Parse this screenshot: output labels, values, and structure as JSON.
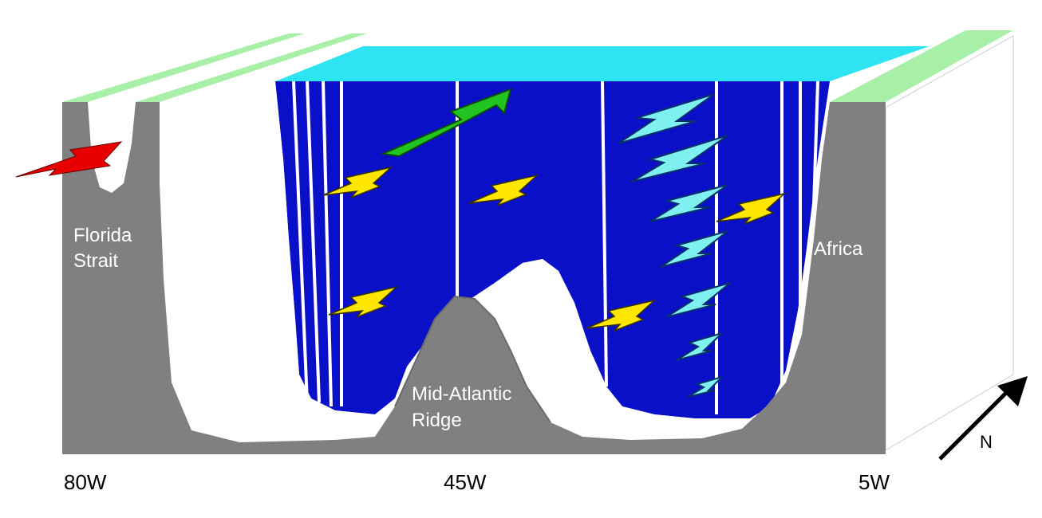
{
  "labels": {
    "florida_line1": "Florida",
    "florida_line2": "Strait",
    "africa": "Africa",
    "ridge_line1": "Mid-Atlantic",
    "ridge_line2": "Ridge",
    "west": "80W",
    "middle": "45W",
    "east": "5W",
    "north": "N"
  },
  "icons": {
    "florida_current": "red-arrow-icon",
    "northward_flow": "green-arrow-icon",
    "deep_flows": "cyan-arrow-icon",
    "mid_flows": "yellow-arrow-icon",
    "compass": "north-arrow-icon"
  },
  "colors": {
    "land": "#808080",
    "ocean": "#0a10c8",
    "surface": "#2fe4f2",
    "shelf": "#a8f0a8",
    "florida_current": "#e80000",
    "northward_flow": "#22c422",
    "deep_flows": "#7ff0f0",
    "mid_flows": "#ffe600"
  }
}
